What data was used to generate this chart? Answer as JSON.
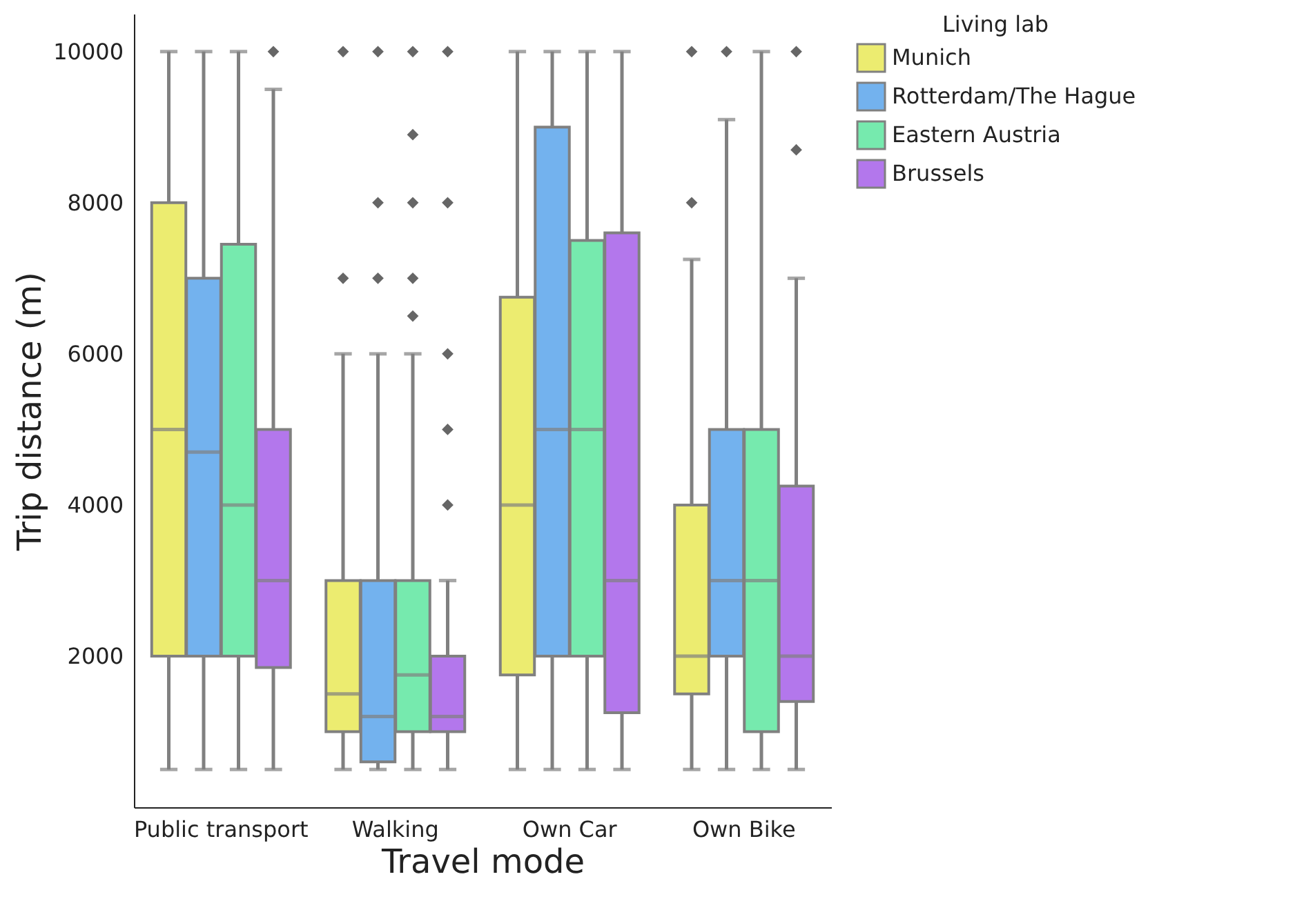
{
  "chart_data": {
    "type": "box",
    "xlabel": "Travel mode",
    "ylabel": "Trip distance (m)",
    "legend_title": "Living lab",
    "legend": "right",
    "grid": false,
    "categories": [
      "Public transport",
      "Walking",
      "Own Car",
      "Own Bike"
    ],
    "ylim": [
      0,
      10500
    ],
    "yticks": [
      2000,
      4000,
      6000,
      8000,
      10000
    ],
    "series": [
      {
        "name": "Munich",
        "color": "#ecec70",
        "boxes": [
          {
            "low": 500,
            "q1": 2000,
            "median": 5000,
            "q3": 8000,
            "high": 10000
          },
          {
            "low": 500,
            "q1": 1000,
            "median": 1500,
            "q3": 3000,
            "high": 6000,
            "outliers": [
              7000,
              10000
            ]
          },
          {
            "low": 500,
            "q1": 1750,
            "median": 4000,
            "q3": 6750,
            "high": 10000
          },
          {
            "low": 500,
            "q1": 1500,
            "median": 2000,
            "q3": 4000,
            "high": 7250,
            "outliers": [
              8000,
              10000
            ]
          }
        ]
      },
      {
        "name": "Rotterdam/The Hague",
        "color": "#73b2ee",
        "boxes": [
          {
            "low": 500,
            "q1": 2000,
            "median": 4700,
            "q3": 7000,
            "high": 10000
          },
          {
            "low": 500,
            "q1": 600,
            "median": 1200,
            "q3": 3000,
            "high": 6000,
            "outliers": [
              7000,
              8000,
              10000
            ]
          },
          {
            "low": 500,
            "q1": 2000,
            "median": 5000,
            "q3": 9000,
            "high": 10000
          },
          {
            "low": 500,
            "q1": 2000,
            "median": 3000,
            "q3": 5000,
            "high": 9100,
            "outliers": [
              10000
            ]
          }
        ]
      },
      {
        "name": "Eastern Austria",
        "color": "#76eaae",
        "boxes": [
          {
            "low": 500,
            "q1": 2000,
            "median": 4000,
            "q3": 7450,
            "high": 10000
          },
          {
            "low": 500,
            "q1": 1000,
            "median": 1750,
            "q3": 3000,
            "high": 6000,
            "outliers": [
              6500,
              7000,
              8000,
              8900,
              10000
            ]
          },
          {
            "low": 500,
            "q1": 2000,
            "median": 5000,
            "q3": 7500,
            "high": 10000
          },
          {
            "low": 500,
            "q1": 1000,
            "median": 3000,
            "q3": 5000,
            "high": 10000
          }
        ]
      },
      {
        "name": "Brussels",
        "color": "#b377ec",
        "boxes": [
          {
            "low": 500,
            "q1": 1850,
            "median": 3000,
            "q3": 5000,
            "high": 9500,
            "outliers": [
              10000
            ]
          },
          {
            "low": 500,
            "q1": 1000,
            "median": 1200,
            "q3": 2000,
            "high": 3000,
            "outliers": [
              4000,
              5000,
              6000,
              8000,
              10000
            ]
          },
          {
            "low": 500,
            "q1": 1250,
            "median": 3000,
            "q3": 7600,
            "high": 10000
          },
          {
            "low": 500,
            "q1": 1400,
            "median": 2000,
            "q3": 4250,
            "high": 7000,
            "outliers": [
              8700,
              10000
            ]
          }
        ]
      }
    ]
  }
}
